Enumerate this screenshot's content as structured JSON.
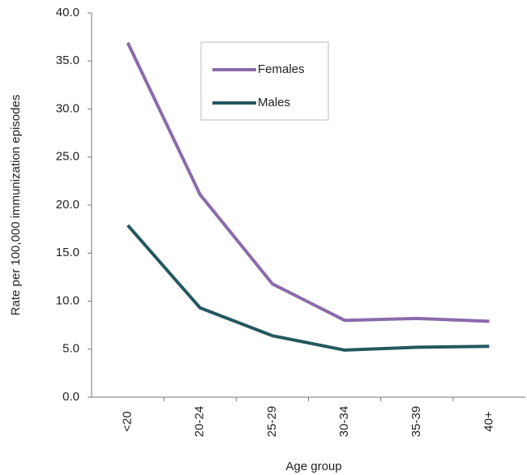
{
  "chart_data": {
    "type": "line",
    "x_label": "Age group",
    "y_label": "Rate per 100,000 immunization episodes",
    "categories": [
      "<20",
      "20-24",
      "25-29",
      "30-34",
      "35-39",
      "40+"
    ],
    "series": [
      {
        "name": "Females",
        "color": "#8a6bab",
        "values": [
          36.9,
          21.1,
          11.8,
          8.0,
          8.2,
          7.9
        ]
      },
      {
        "name": "Males",
        "color": "#24585f",
        "values": [
          17.9,
          9.3,
          6.4,
          4.9,
          5.2,
          5.3
        ]
      }
    ],
    "ylim": [
      0,
      40
    ],
    "yticks": [
      {
        "value": 0,
        "label": "0.0"
      },
      {
        "value": 5,
        "label": "5.0"
      },
      {
        "value": 10,
        "label": "10.0"
      },
      {
        "value": 15,
        "label": "15.0"
      },
      {
        "value": 20,
        "label": "20.0"
      },
      {
        "value": 25,
        "label": "25.0"
      },
      {
        "value": 30,
        "label": "30.0"
      },
      {
        "value": 35,
        "label": "35.0"
      },
      {
        "value": 40,
        "label": "40.0"
      }
    ],
    "grid": false,
    "legend": "upper center"
  }
}
